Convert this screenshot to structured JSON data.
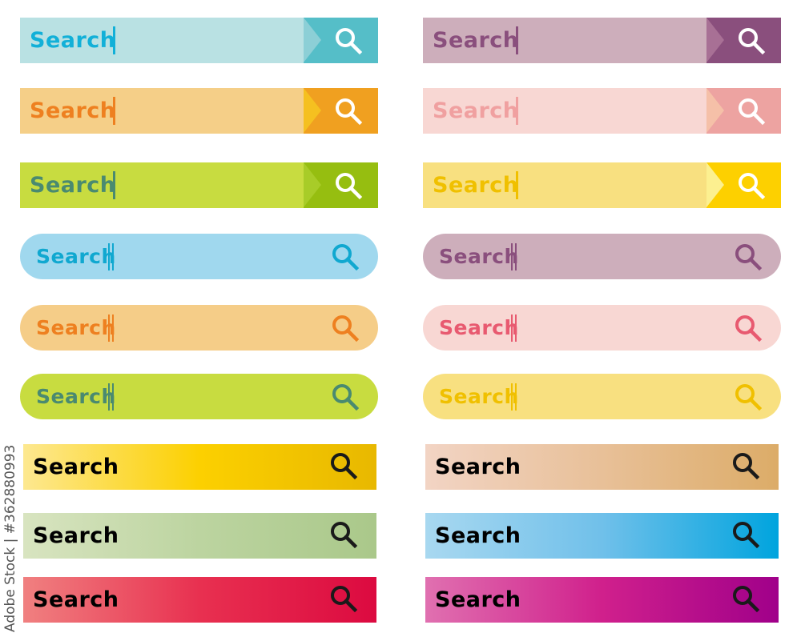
{
  "watermark": "Adobe Stock | #362880993",
  "search_bars": [
    {
      "label": "Search",
      "style": "square",
      "column": "left",
      "bg": "#b9e1e3",
      "button": "#55bec8",
      "chevron": "#8ccfd6",
      "text_color": "#12b0d8",
      "icon": "search-icon"
    },
    {
      "label": "Search",
      "style": "square",
      "column": "left",
      "bg": "#f5cf88",
      "button": "#f0a020",
      "chevron": "#f5c020",
      "text_color": "#ee8020",
      "icon": "search-icon"
    },
    {
      "label": "Search",
      "style": "square",
      "column": "left",
      "bg": "#c8dc40",
      "button": "#96be10",
      "chevron": "#a8cc28",
      "text_color": "#4a8a70",
      "icon": "search-icon"
    },
    {
      "label": "Search",
      "style": "pill",
      "column": "left",
      "bg": "#a0d8ee",
      "text_color": "#10a8d0",
      "icon": "search-icon"
    },
    {
      "label": "Search",
      "style": "pill",
      "column": "left",
      "bg": "#f5cd88",
      "text_color": "#ee8020",
      "icon": "search-icon"
    },
    {
      "label": "Search",
      "style": "pill",
      "column": "left",
      "bg": "#c8dc40",
      "text_color": "#4a8a70",
      "icon": "search-icon"
    },
    {
      "label": "Search",
      "style": "gradient",
      "column": "left",
      "gradient": [
        "#fde890",
        "#fcd000",
        "#e8b800"
      ],
      "icon": "search-icon"
    },
    {
      "label": "Search",
      "style": "gradient",
      "column": "left",
      "gradient": [
        "#d8e4c0",
        "#bcd4a0",
        "#aac88a"
      ],
      "icon": "search-icon"
    },
    {
      "label": "Search",
      "style": "gradient",
      "column": "left",
      "gradient": [
        "#f08080",
        "#e83050",
        "#dc0a40"
      ],
      "icon": "search-icon"
    },
    {
      "label": "Search",
      "style": "square",
      "column": "right",
      "bg": "#cdaebb",
      "button": "#8a4f7d",
      "chevron": "#a87095",
      "text_color": "#8a4f7d",
      "icon": "search-icon"
    },
    {
      "label": "Search",
      "style": "square",
      "column": "right",
      "bg": "#f8d7d3",
      "button": "#eda3a1",
      "chevron": "#f5c0a8",
      "text_color": "#f0a0a0",
      "icon": "search-icon"
    },
    {
      "label": "Search",
      "style": "square",
      "column": "right",
      "bg": "#f8e080",
      "button": "#fdd000",
      "chevron": "#fcf090",
      "text_color": "#f0c000",
      "icon": "search-icon"
    },
    {
      "label": "Search",
      "style": "pill",
      "column": "right",
      "bg": "#cdaebb",
      "text_color": "#8a4f7d",
      "icon": "search-icon"
    },
    {
      "label": "Search",
      "style": "pill",
      "column": "right",
      "bg": "#f8d7d3",
      "text_color": "#e85a70",
      "icon": "search-icon"
    },
    {
      "label": "Search",
      "style": "pill",
      "column": "right",
      "bg": "#f8e080",
      "text_color": "#f0c000",
      "icon": "search-icon"
    },
    {
      "label": "Search",
      "style": "gradient",
      "column": "right",
      "gradient": [
        "#f2d4c4",
        "#e8c098",
        "#dcac68"
      ],
      "icon": "search-icon"
    },
    {
      "label": "Search",
      "style": "gradient",
      "column": "right",
      "gradient": [
        "#a8d8f0",
        "#70c0ea",
        "#00a4de"
      ],
      "icon": "search-icon"
    },
    {
      "label": "Search",
      "style": "gradient",
      "column": "right",
      "gradient": [
        "#e070b0",
        "#d0208c",
        "#a0008a"
      ],
      "icon": "search-icon"
    }
  ]
}
